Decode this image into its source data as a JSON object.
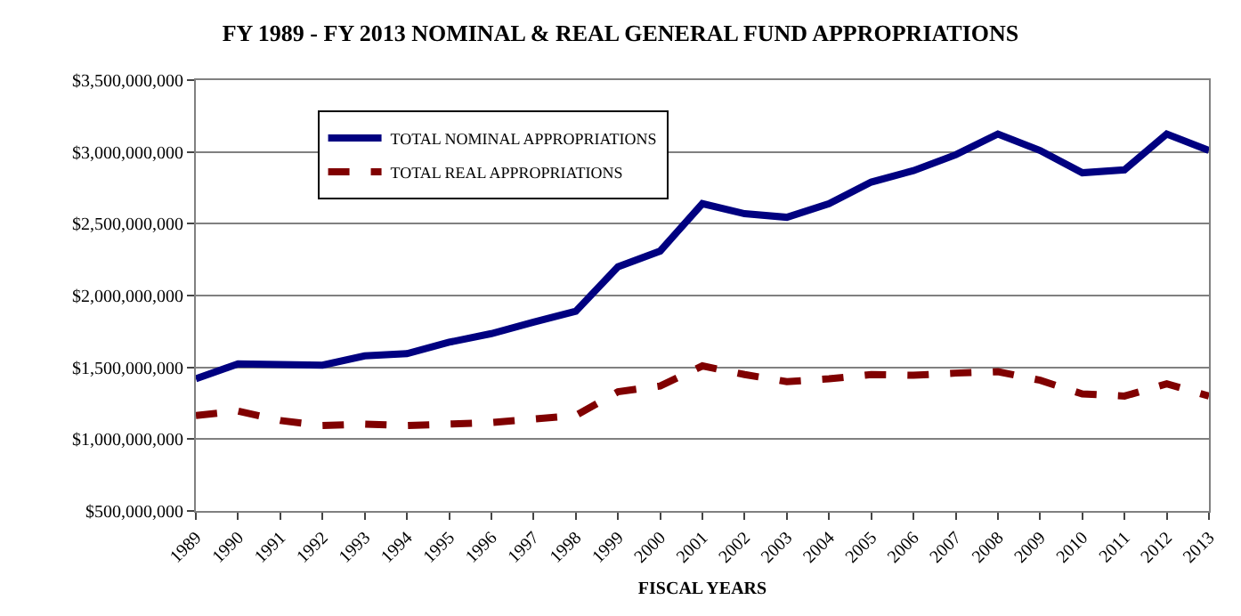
{
  "chart_data": {
    "type": "line",
    "title": "FY 1989 - FY 2013 NOMINAL & REAL GENERAL FUND APPROPRIATIONS",
    "xlabel": "FISCAL YEARS",
    "categories": [
      "1989",
      "1990",
      "1991",
      "1992",
      "1993",
      "1994",
      "1995",
      "1996",
      "1997",
      "1998",
      "1999",
      "2000",
      "2001",
      "2002",
      "2003",
      "2004",
      "2005",
      "2006",
      "2007",
      "2008",
      "2009",
      "2010",
      "2011",
      "2012",
      "2013"
    ],
    "series": [
      {
        "name": "TOTAL NOMINAL APPROPRIATIONS",
        "color": "#000080",
        "line_style": "solid",
        "values": [
          1420000000,
          1525000000,
          1520000000,
          1515000000,
          1580000000,
          1595000000,
          1675000000,
          1735000000,
          1815000000,
          1890000000,
          2200000000,
          2310000000,
          2640000000,
          2570000000,
          2545000000,
          2640000000,
          2790000000,
          2870000000,
          2980000000,
          3125000000,
          3010000000,
          2855000000,
          2875000000,
          3125000000,
          3010000000
        ]
      },
      {
        "name": "TOTAL REAL APPROPRIATIONS",
        "color": "#800000",
        "line_style": "dashed",
        "values": [
          1165000000,
          1195000000,
          1130000000,
          1095000000,
          1105000000,
          1095000000,
          1105000000,
          1115000000,
          1140000000,
          1165000000,
          1330000000,
          1370000000,
          1510000000,
          1450000000,
          1400000000,
          1420000000,
          1450000000,
          1445000000,
          1460000000,
          1470000000,
          1410000000,
          1315000000,
          1300000000,
          1385000000,
          1300000000
        ]
      }
    ],
    "ylim": [
      500000000,
      3500000000
    ],
    "yticks": [
      {
        "value": 500000000,
        "label": "$500,000,000"
      },
      {
        "value": 1000000000,
        "label": "$1,000,000,000"
      },
      {
        "value": 1500000000,
        "label": "$1,500,000,000"
      },
      {
        "value": 2000000000,
        "label": "$2,000,000,000"
      },
      {
        "value": 2500000000,
        "label": "$2,500,000,000"
      },
      {
        "value": 3000000000,
        "label": "$3,000,000,000"
      },
      {
        "value": 3500000000,
        "label": "$3,500,000,000"
      }
    ],
    "grid": "y",
    "legend": "top left",
    "marker": "none"
  }
}
